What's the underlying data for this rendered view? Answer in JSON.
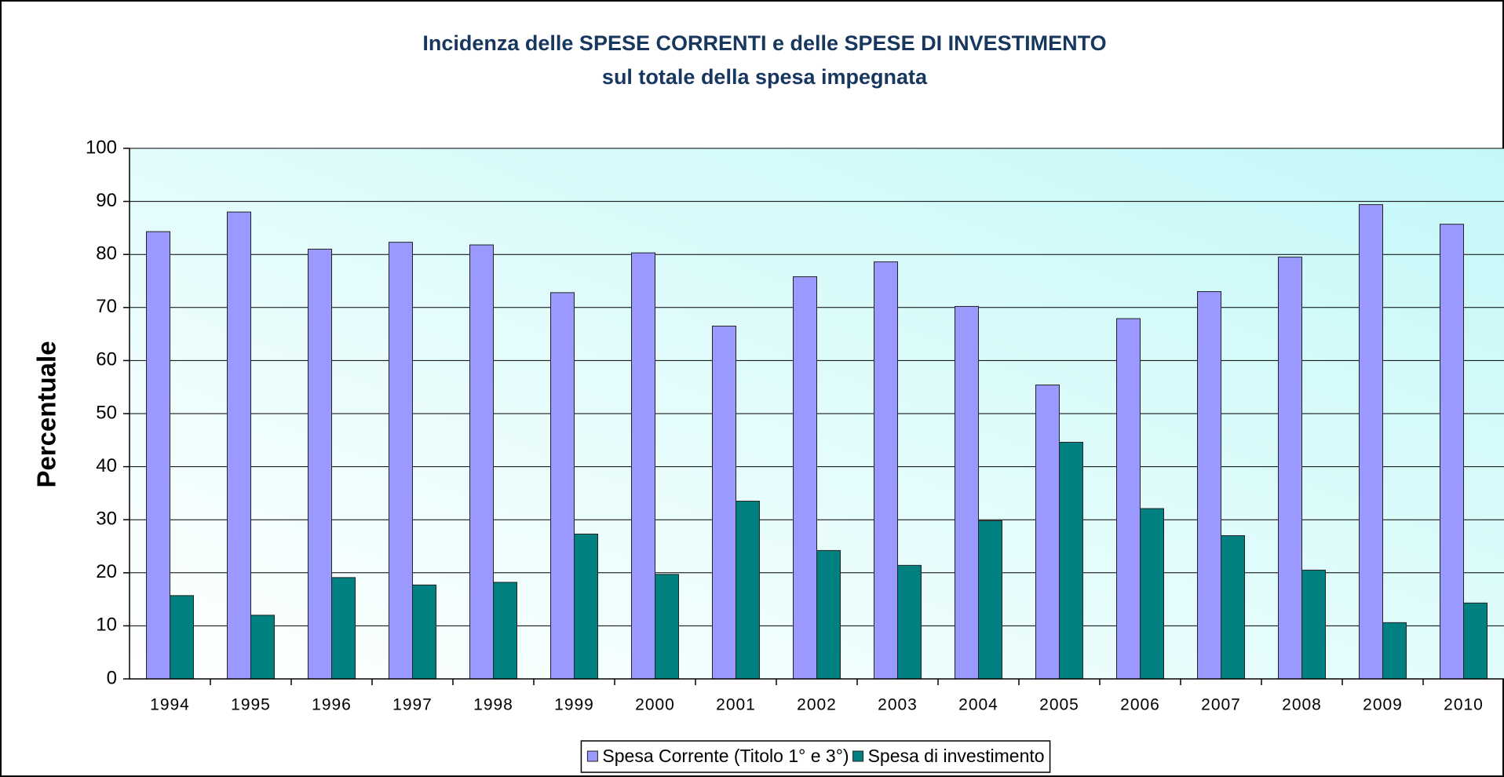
{
  "chart_data": {
    "type": "bar",
    "title": [
      "Incidenza delle SPESE CORRENTI e delle SPESE DI INVESTIMENTO",
      "sul totale della spesa impegnata"
    ],
    "y_label": "Percentuale",
    "categories": [
      "1994",
      "1995",
      "1996",
      "1997",
      "1998",
      "1999",
      "2000",
      "2001",
      "2002",
      "2003",
      "2004",
      "2005",
      "2006",
      "2007",
      "2008",
      "2009",
      "2010"
    ],
    "series": [
      {
        "name": "Spesa Corrente (Titolo 1° e 3°)",
        "color": "#9999ff",
        "values": [
          84.3,
          88,
          81,
          82.3,
          81.8,
          72.8,
          80.3,
          66.5,
          75.8,
          78.6,
          70.2,
          55.4,
          67.9,
          73,
          79.5,
          89.4,
          85.7
        ]
      },
      {
        "name": "Spesa di investimento",
        "color": "#008080",
        "values": [
          15.7,
          12,
          19.1,
          17.7,
          18.2,
          27.3,
          19.7,
          33.5,
          24.2,
          21.4,
          29.8,
          44.6,
          32.1,
          27,
          20.5,
          10.6,
          14.3
        ]
      }
    ],
    "ylim": [
      0,
      100
    ],
    "yticks": [
      0,
      10,
      20,
      30,
      40,
      50,
      60,
      70,
      80,
      90,
      100
    ],
    "grid": true,
    "legend": "bottom"
  }
}
